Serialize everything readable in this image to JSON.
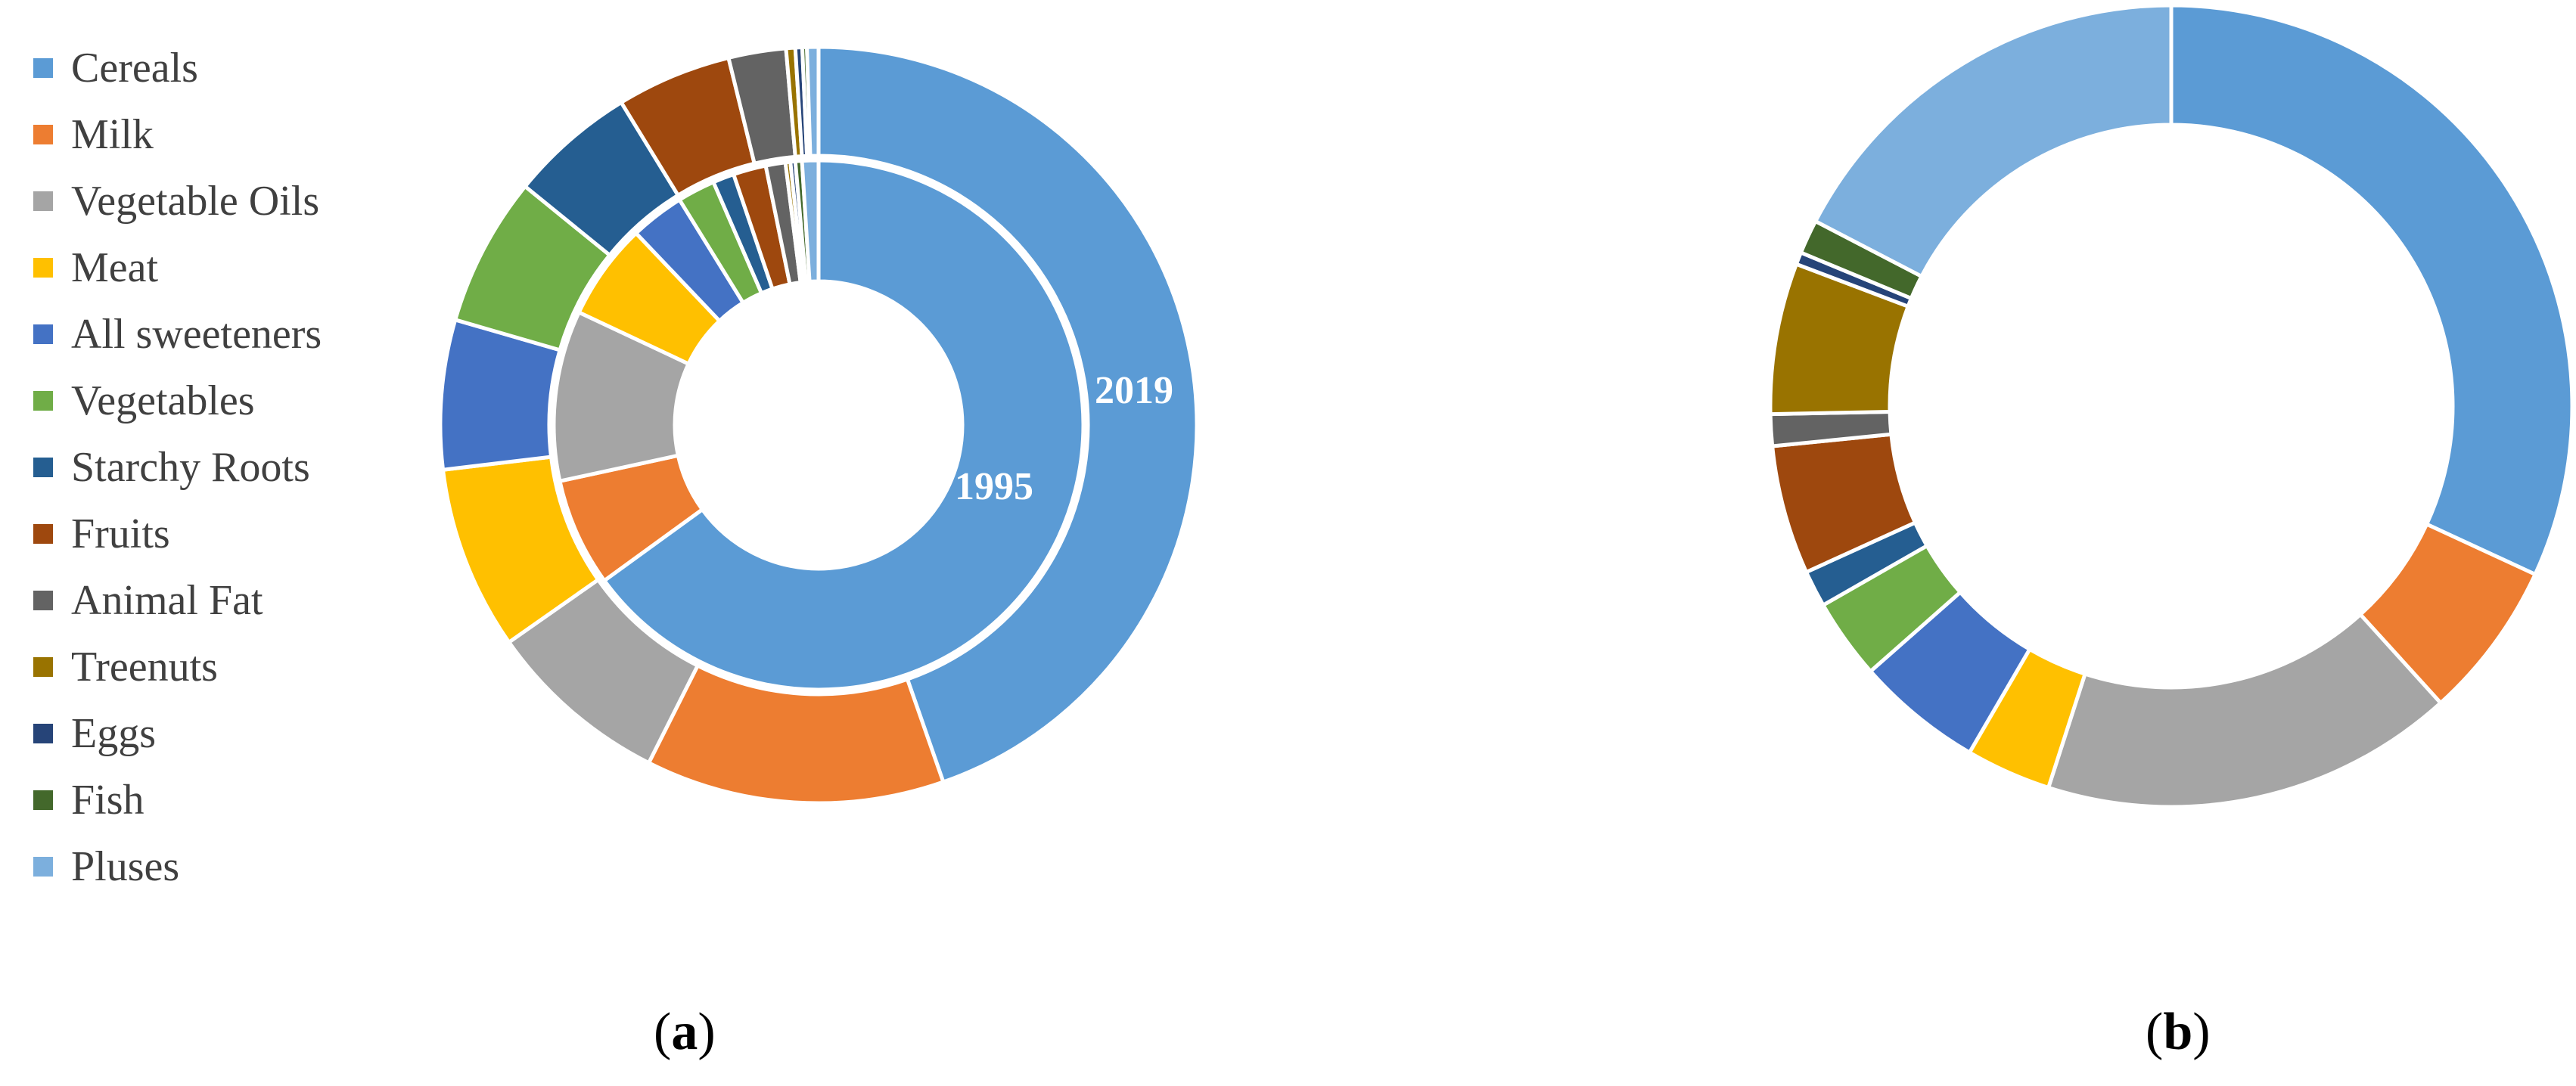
{
  "colors": {
    "Cereals": "#5b9bd5",
    "Milk": "#ed7d31",
    "Vegetable Oils": "#a5a5a5",
    "Meat": "#ffc000",
    "All sweeteners": "#4472c4",
    "Vegetables": "#70ad47",
    "Starchy Roots": "#255e91",
    "Fruits": "#9e480e",
    "Animal Fat": "#636363",
    "Treenuts": "#997300",
    "Eggs": "#264478",
    "Fish": "#43682b",
    "Pluses": "#7cafdd"
  },
  "legend": {
    "items": [
      "Cereals",
      "Milk",
      "Vegetable Oils",
      "Meat",
      "All sweeteners",
      "Vegetables",
      "Starchy Roots",
      "Fruits",
      "Animal Fat",
      "Treenuts",
      "Eggs",
      "Fish",
      "Pluses"
    ]
  },
  "panels": {
    "a": {
      "open": "(",
      "letter": "a",
      "close": ")"
    },
    "b": {
      "open": "(",
      "letter": "b",
      "close": ")"
    }
  },
  "chart_data": [
    {
      "type": "pie",
      "variant": "nested-donut",
      "panel": "a",
      "categories": [
        "Cereals",
        "Milk",
        "Vegetable Oils",
        "Meat",
        "All sweeteners",
        "Vegetables",
        "Starchy Roots",
        "Fruits",
        "Animal Fat",
        "Treenuts",
        "Eggs",
        "Fish",
        "Pluses"
      ],
      "series": [
        {
          "name": "1995",
          "ring": "inner",
          "values": [
            65.0,
            6.6,
            10.4,
            5.9,
            3.3,
            2.3,
            1.3,
            2.0,
            1.2,
            0.3,
            0.3,
            0.4,
            1.0
          ]
        },
        {
          "name": "2019",
          "ring": "outer",
          "values": [
            45.5,
            13.0,
            8.0,
            8.0,
            6.5,
            6.5,
            5.5,
            5.0,
            2.5,
            0.4,
            0.3,
            0.2,
            0.5
          ]
        }
      ],
      "legend_position": "left"
    },
    {
      "type": "pie",
      "variant": "donut",
      "panel": "b",
      "categories": [
        "Cereals",
        "Milk",
        "Vegetable Oils",
        "Meat",
        "All sweeteners",
        "Vegetables",
        "Starchy Roots",
        "Fruits",
        "Animal Fat",
        "Treenuts",
        "Eggs",
        "Fish",
        "Pluses"
      ],
      "values": [
        32.5,
        6.5,
        17.0,
        3.5,
        5.2,
        3.3,
        1.5,
        5.3,
        1.3,
        6.2,
        0.5,
        1.4,
        17.7
      ],
      "legend_position": "none"
    }
  ]
}
